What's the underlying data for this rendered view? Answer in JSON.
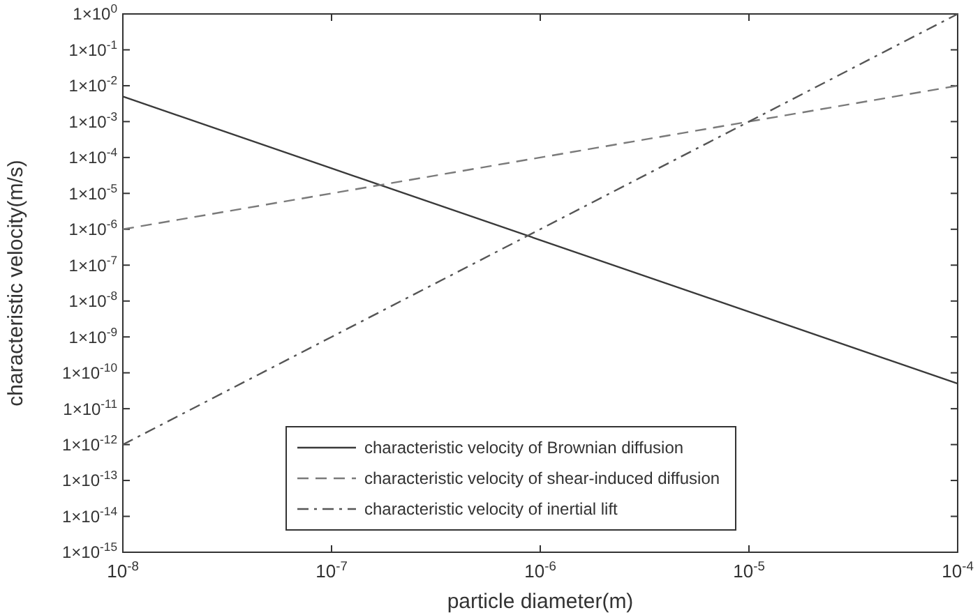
{
  "chart_data": {
    "type": "line",
    "xlabel": "particle diameter(m)",
    "ylabel": "characteristic velocity(m/s)",
    "log": "xy",
    "grid": false,
    "legend": "bottom",
    "xlim": [
      1e-08,
      0.0001
    ],
    "ylim": [
      1e-15,
      1
    ],
    "xticks": [
      {
        "value": 1e-08,
        "label": "10$^{-8}$"
      },
      {
        "value": 1e-07,
        "label": "10$^{-7}$"
      },
      {
        "value": 1e-06,
        "label": "10$^{-6}$"
      },
      {
        "value": 1e-05,
        "label": "10$^{-5}$"
      },
      {
        "value": 0.0001,
        "label": "10$^{-4}$"
      }
    ],
    "yticks": [
      {
        "value": 1e-15,
        "label": "1×10$^{-15}$"
      },
      {
        "value": 1e-14,
        "label": "1×10$^{-14}$"
      },
      {
        "value": 1e-13,
        "label": "1×10$^{-13}$"
      },
      {
        "value": 1e-12,
        "label": "1×10$^{-12}$"
      },
      {
        "value": 1e-11,
        "label": "1×10$^{-11}$"
      },
      {
        "value": 1e-10,
        "label": "1×10$^{-10}$"
      },
      {
        "value": 1e-09,
        "label": "1×10$^{-9}$"
      },
      {
        "value": 1e-08,
        "label": "1×10$^{-8}$"
      },
      {
        "value": 1e-07,
        "label": "1×10$^{-7}$"
      },
      {
        "value": 1e-06,
        "label": "1×10$^{-6}$"
      },
      {
        "value": 1e-05,
        "label": "1×10$^{-5}$"
      },
      {
        "value": 0.0001,
        "label": "1×10$^{-4}$"
      },
      {
        "value": 0.001,
        "label": "1×10$^{-3}$"
      },
      {
        "value": 0.01,
        "label": "1×10$^{-2}$"
      },
      {
        "value": 0.1,
        "label": "1×10$^{-1}$"
      },
      {
        "value": 1,
        "label": "1×10$^{0}$"
      }
    ],
    "x": [
      1e-08,
      1e-07,
      1e-06,
      1e-05,
      0.0001
    ],
    "series": [
      {
        "name": "characteristic velocity of Brownian diffusion",
        "color": "#3a3a3a",
        "line_style": "solid",
        "values": [
          0.005,
          5e-05,
          5e-07,
          5e-09,
          5e-11
        ]
      },
      {
        "name": "characteristic velocity of shear-induced diffusion",
        "color": "#7a7a7a",
        "line_style": "dashed",
        "values": [
          1e-06,
          1e-05,
          0.0001,
          0.001,
          0.01
        ]
      },
      {
        "name": "characteristic velocity of inertial lift",
        "color": "#555555",
        "line_style": "dashdot",
        "values": [
          1e-12,
          1e-09,
          1e-06,
          0.001,
          1
        ]
      }
    ]
  }
}
